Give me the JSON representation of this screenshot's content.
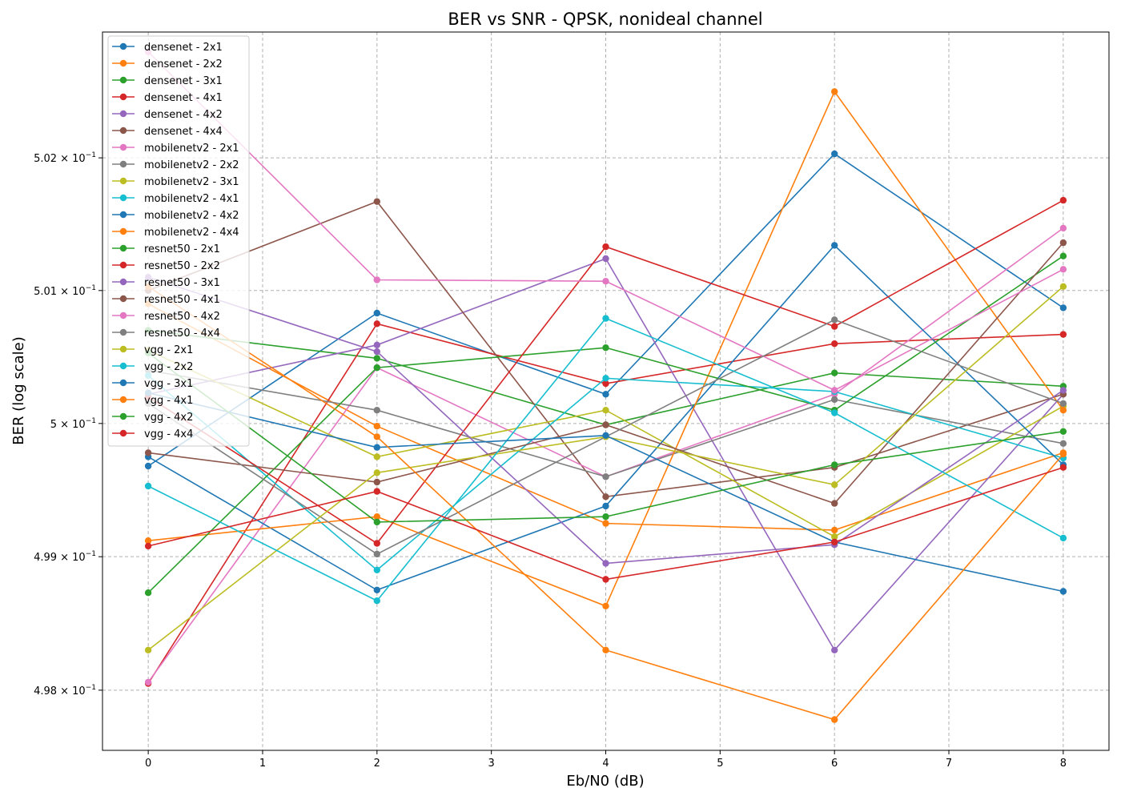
{
  "chart_data": {
    "type": "line",
    "title": "BER vs SNR - QPSK, nonideal channel",
    "xlabel": "Eb/N0 (dB)",
    "ylabel": "BER (log scale)",
    "x": [
      0,
      2,
      4,
      6,
      8
    ],
    "xlim": [
      -0.4,
      8.4
    ],
    "ylim": [
      0.49755,
      0.50295
    ],
    "yscale": "log",
    "x_ticks": [
      "0",
      "1",
      "2",
      "3",
      "4",
      "5",
      "6",
      "7",
      "8"
    ],
    "y_ticks": [
      {
        "value": 0.498,
        "mantissa": "4.98",
        "exponent": "−1"
      },
      {
        "value": 0.499,
        "mantissa": "4.99",
        "exponent": "−1"
      },
      {
        "value": 0.5,
        "mantissa": "5",
        "exponent": "−1"
      },
      {
        "value": 0.501,
        "mantissa": "5.01",
        "exponent": "−1"
      },
      {
        "value": 0.502,
        "mantissa": "5.02",
        "exponent": "−1"
      }
    ],
    "grid": true,
    "legend_position": "upper left",
    "series": [
      {
        "name": "densenet - 2x1",
        "color": "#1f77b4",
        "values": [
          0.49968,
          0.50083,
          0.50022,
          0.50203,
          0.50087
        ]
      },
      {
        "name": "densenet - 2x2",
        "color": "#ff7f0e",
        "values": [
          0.5009,
          0.49998,
          0.49925,
          0.4992,
          0.49978
        ]
      },
      {
        "name": "densenet - 3x1",
        "color": "#2ca02c",
        "values": [
          0.5007,
          0.50049,
          0.49999,
          0.50038,
          0.50028
        ]
      },
      {
        "name": "densenet - 4x1",
        "color": "#d62728",
        "values": [
          0.49805,
          0.50075,
          0.5003,
          0.5006,
          0.50067
        ]
      },
      {
        "name": "densenet - 4x2",
        "color": "#9467bd",
        "values": [
          0.50022,
          0.50059,
          0.50124,
          0.4983,
          0.50022
        ]
      },
      {
        "name": "densenet - 4x4",
        "color": "#8c564b",
        "values": [
          0.501,
          0.50167,
          0.49945,
          0.49967,
          0.50022
        ]
      },
      {
        "name": "mobilenetv2 - 2x1",
        "color": "#e377c2",
        "values": [
          0.49806,
          0.50042,
          0.4996,
          0.50022,
          0.50147
        ]
      },
      {
        "name": "mobilenetv2 - 2x2",
        "color": "#7f7f7f",
        "values": [
          0.5004,
          0.5001,
          0.4996,
          0.50018,
          0.49985
        ]
      },
      {
        "name": "mobilenetv2 - 3x1",
        "color": "#bcbd22",
        "values": [
          0.50055,
          0.49975,
          0.5001,
          0.49915,
          0.50013
        ]
      },
      {
        "name": "mobilenetv2 - 4x1",
        "color": "#17becf",
        "values": [
          0.50036,
          0.4989,
          0.50034,
          0.50024,
          0.49974
        ]
      },
      {
        "name": "mobilenetv2 - 4x2",
        "color": "#1f77b4",
        "values": [
          0.49975,
          0.49875,
          0.49938,
          0.50134,
          0.49969
        ]
      },
      {
        "name": "mobilenetv2 - 4x4",
        "color": "#ff7f0e",
        "values": [
          0.49912,
          0.4993,
          0.49863,
          0.5025,
          0.5001
        ]
      },
      {
        "name": "resnet50 - 2x1",
        "color": "#2ca02c",
        "values": [
          0.49873,
          0.50042,
          0.50057,
          0.5001,
          0.50126
        ]
      },
      {
        "name": "resnet50 - 2x2",
        "color": "#d62728",
        "values": [
          0.5002,
          0.4991,
          0.50133,
          0.50073,
          0.50168
        ]
      },
      {
        "name": "resnet50 - 3x1",
        "color": "#9467bd",
        "values": [
          0.5011,
          0.50054,
          0.49895,
          0.49909,
          0.50025
        ]
      },
      {
        "name": "resnet50 - 4x1",
        "color": "#8c564b",
        "values": [
          0.49978,
          0.49956,
          0.49999,
          0.4994,
          0.50136
        ]
      },
      {
        "name": "resnet50 - 4x2",
        "color": "#e377c2",
        "values": [
          0.5028,
          0.50108,
          0.50107,
          0.50025,
          0.50116
        ]
      },
      {
        "name": "resnet50 - 4x4",
        "color": "#7f7f7f",
        "values": [
          0.50015,
          0.49902,
          0.4999,
          0.50078,
          0.50015
        ]
      },
      {
        "name": "vgg - 2x1",
        "color": "#bcbd22",
        "values": [
          0.4983,
          0.49963,
          0.4999,
          0.49954,
          0.50103
        ]
      },
      {
        "name": "vgg - 2x2",
        "color": "#17becf",
        "values": [
          0.49953,
          0.49867,
          0.50079,
          0.50008,
          0.49914
        ]
      },
      {
        "name": "vgg - 3x1",
        "color": "#1f77b4",
        "values": [
          0.50023,
          0.49982,
          0.49991,
          0.49911,
          0.49874
        ]
      },
      {
        "name": "vgg - 4x1",
        "color": "#ff7f0e",
        "values": [
          0.50103,
          0.4999,
          0.4983,
          0.49778,
          0.49977
        ]
      },
      {
        "name": "vgg - 4x2",
        "color": "#2ca02c",
        "values": [
          0.50053,
          0.49926,
          0.4993,
          0.49969,
          0.49994
        ]
      },
      {
        "name": "vgg - 4x4",
        "color": "#d62728",
        "values": [
          0.49908,
          0.49949,
          0.49883,
          0.49911,
          0.49967
        ]
      }
    ]
  }
}
